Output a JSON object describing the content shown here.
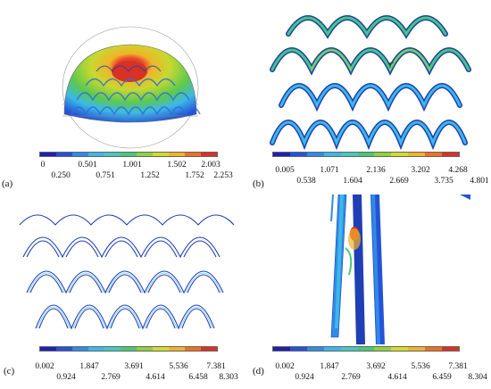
{
  "colormap": [
    "#1f1fb4",
    "#2553d6",
    "#2f8be6",
    "#3cb8e8",
    "#45c8c0",
    "#47c878",
    "#8fd23c",
    "#d2dc2c",
    "#f0b428",
    "#ee7024",
    "#d83224"
  ],
  "panels": [
    {
      "label": "(a)",
      "ticks_top": [
        "0",
        "0.501",
        "1.001",
        "1.502",
        "2.003"
      ],
      "ticks_bottom": [
        "0.250",
        "0.751",
        "1.252",
        "1.752",
        "2.253"
      ]
    },
    {
      "label": "(b)",
      "ticks_top": [
        "0.005",
        "1.071",
        "2.136",
        "3.202",
        "4.268"
      ],
      "ticks_bottom": [
        "0.538",
        "1.604",
        "2.669",
        "3.735",
        "4.801"
      ]
    },
    {
      "label": "(c)",
      "ticks_top": [
        "0.002",
        "1.847",
        "3.691",
        "5.536",
        "7.381"
      ],
      "ticks_bottom": [
        "0.924",
        "2.769",
        "4.614",
        "6.458",
        "8.303"
      ]
    },
    {
      "label": "(d)",
      "ticks_top": [
        "0.002",
        "1.847",
        "3.692",
        "5.536",
        "7.381"
      ],
      "ticks_bottom": [
        "0.924",
        "2.769",
        "4.614",
        "6.459",
        "8.304"
      ]
    }
  ]
}
